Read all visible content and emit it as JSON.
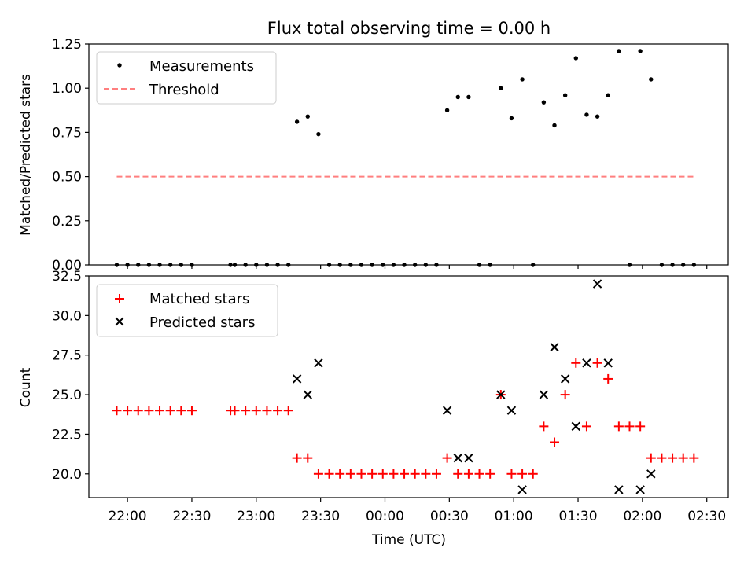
{
  "title": "Flux total observing time = 0.00 h",
  "colors": {
    "measurement": "#000000",
    "threshold": "#ff7f7f",
    "matched": "#ff0000",
    "predicted": "#000000"
  },
  "chart_data": [
    {
      "type": "scatter",
      "ylabel": "Matched/Predicted stars",
      "xlim": [
        "21:42",
        "02:40"
      ],
      "ylim": [
        0,
        1.25
      ],
      "yticks": [
        "0.00",
        "0.25",
        "0.50",
        "0.75",
        "1.00",
        "1.25"
      ],
      "grid": false,
      "legend_position": "top-left",
      "series": [
        {
          "name": "Measurements",
          "marker": "dot",
          "x": [
            "21:55",
            "22:00",
            "22:05",
            "22:10",
            "22:15",
            "22:20",
            "22:25",
            "22:30",
            "22:48",
            "22:50",
            "22:55",
            "23:00",
            "23:05",
            "23:10",
            "23:15",
            "23:19",
            "23:24",
            "23:29",
            "23:34",
            "23:39",
            "23:44",
            "23:49",
            "23:54",
            "23:59",
            "00:04",
            "00:09",
            "00:14",
            "00:19",
            "00:24",
            "00:29",
            "00:34",
            "00:39",
            "00:44",
            "00:49",
            "00:54",
            "00:59",
            "01:04",
            "01:09",
            "01:14",
            "01:19",
            "01:24",
            "01:29",
            "01:34",
            "01:39",
            "01:44",
            "01:49",
            "01:54",
            "01:59",
            "02:04",
            "02:09",
            "02:14",
            "02:19",
            "02:24"
          ],
          "y": [
            0,
            0,
            0,
            0,
            0,
            0,
            0,
            0,
            0,
            0,
            0,
            0,
            0,
            0,
            0,
            0.81,
            0.84,
            0.74,
            0,
            0,
            0,
            0,
            0,
            0,
            0,
            0,
            0,
            0,
            0,
            0.875,
            0.95,
            0.95,
            0,
            0,
            1.0,
            0.83,
            1.05,
            0,
            0.92,
            0.79,
            0.96,
            1.17,
            0.85,
            0.84,
            0.96,
            1.21,
            0,
            1.21,
            1.05,
            0,
            0,
            0,
            0
          ]
        },
        {
          "name": "Threshold",
          "marker": "dashed-line",
          "x": [
            "21:55",
            "02:24"
          ],
          "y": [
            0.5,
            0.5
          ]
        }
      ]
    },
    {
      "type": "scatter",
      "ylabel": "Count",
      "xlabel": "Time (UTC)",
      "xlim": [
        "21:42",
        "02:40"
      ],
      "ylim": [
        18.5,
        32.5
      ],
      "yticks": [
        "20.0",
        "22.5",
        "25.0",
        "27.5",
        "30.0",
        "32.5"
      ],
      "xticks": [
        "22:00",
        "22:30",
        "23:00",
        "23:30",
        "00:00",
        "00:30",
        "01:00",
        "01:30",
        "02:00",
        "02:30"
      ],
      "grid": false,
      "legend_position": "top-left",
      "series": [
        {
          "name": "Matched stars",
          "marker": "plus",
          "x": [
            "21:55",
            "22:00",
            "22:05",
            "22:10",
            "22:15",
            "22:20",
            "22:25",
            "22:30",
            "22:48",
            "22:50",
            "22:55",
            "23:00",
            "23:05",
            "23:10",
            "23:15",
            "23:19",
            "23:24",
            "23:29",
            "23:34",
            "23:39",
            "23:44",
            "23:49",
            "23:54",
            "23:59",
            "00:04",
            "00:09",
            "00:14",
            "00:19",
            "00:24",
            "00:29",
            "00:34",
            "00:39",
            "00:44",
            "00:49",
            "00:54",
            "00:59",
            "01:04",
            "01:09",
            "01:14",
            "01:19",
            "01:24",
            "01:29",
            "01:34",
            "01:39",
            "01:44",
            "01:49",
            "01:54",
            "01:59",
            "02:04",
            "02:09",
            "02:14",
            "02:19",
            "02:24"
          ],
          "y": [
            24,
            24,
            24,
            24,
            24,
            24,
            24,
            24,
            24,
            24,
            24,
            24,
            24,
            24,
            24,
            21,
            21,
            20,
            20,
            20,
            20,
            20,
            20,
            20,
            20,
            20,
            20,
            20,
            20,
            21,
            20,
            20,
            20,
            20,
            25,
            20,
            20,
            20,
            23,
            22,
            25,
            27,
            23,
            27,
            26,
            23,
            23,
            23,
            21,
            21,
            21,
            21,
            21
          ]
        },
        {
          "name": "Predicted stars",
          "marker": "x",
          "x": [
            "23:19",
            "23:24",
            "23:29",
            "00:29",
            "00:34",
            "00:39",
            "00:54",
            "00:59",
            "01:04",
            "01:14",
            "01:19",
            "01:24",
            "01:29",
            "01:34",
            "01:39",
            "01:44",
            "01:49",
            "01:59",
            "02:04"
          ],
          "y": [
            26,
            25,
            27,
            24,
            21,
            21,
            25,
            24,
            19,
            25,
            28,
            26,
            23,
            27,
            32,
            27,
            19,
            19,
            20
          ]
        }
      ]
    }
  ]
}
